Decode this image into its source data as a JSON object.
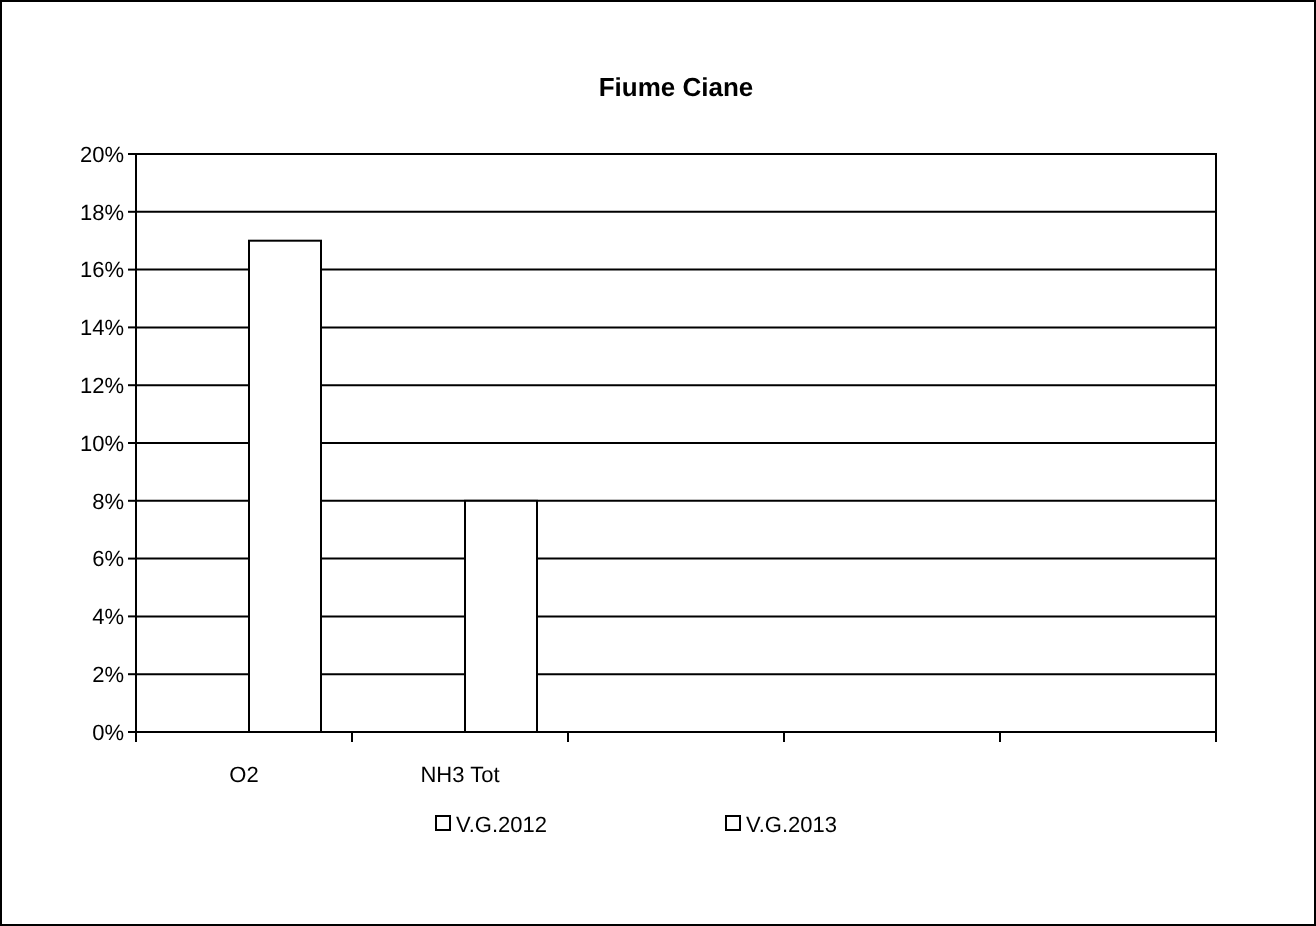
{
  "chart_data": {
    "type": "bar",
    "title": "Fiume Ciane",
    "categories": [
      "O2",
      "NH3 Tot",
      null,
      null,
      null
    ],
    "series": [
      {
        "name": "V.G.2012",
        "color": "#ffffff",
        "values": [
          null,
          null,
          null,
          null,
          null
        ]
      },
      {
        "name": "V.G.2013",
        "color": "#ffffff",
        "values": [
          17,
          8,
          null,
          null,
          null
        ]
      }
    ],
    "ylim": [
      0,
      20
    ],
    "yticks": [
      {
        "value": 0,
        "label": "0%"
      },
      {
        "value": 2,
        "label": "2%"
      },
      {
        "value": 4,
        "label": "4%"
      },
      {
        "value": 6,
        "label": "6%"
      },
      {
        "value": 8,
        "label": "8%"
      },
      {
        "value": 10,
        "label": "10%"
      },
      {
        "value": 12,
        "label": "12%"
      },
      {
        "value": 14,
        "label": "14%"
      },
      {
        "value": 16,
        "label": "16%"
      },
      {
        "value": 18,
        "label": "18%"
      },
      {
        "value": 20,
        "label": "20%"
      }
    ],
    "grid": "y",
    "legend": "bottom"
  }
}
